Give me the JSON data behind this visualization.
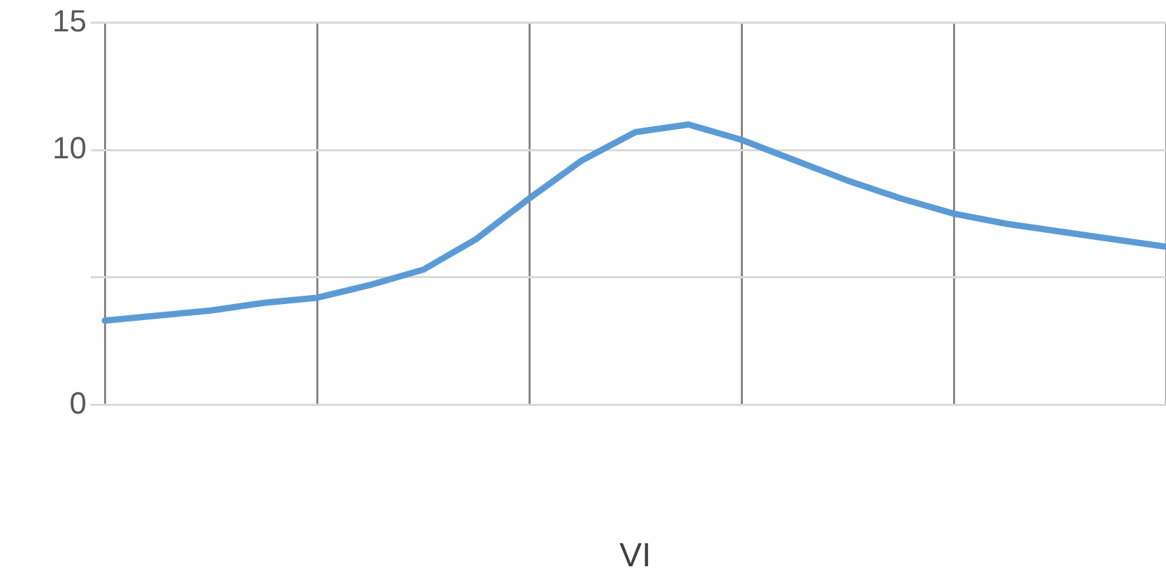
{
  "chart_data": {
    "type": "line",
    "xlabel": "VI",
    "categories": [
      null,
      null,
      null,
      null,
      null,
      null,
      null,
      null,
      null,
      null,
      null,
      null,
      null,
      null,
      null,
      null,
      null,
      null,
      null,
      null,
      null
    ],
    "series": [
      {
        "color": "#5b9bd5",
        "values": [
          3.3,
          3.5,
          3.7,
          4.0,
          4.2,
          4.7,
          5.3,
          6.5,
          8.1,
          9.6,
          10.7,
          11.0,
          10.4,
          9.6,
          8.8,
          8.1,
          7.5,
          7.1,
          6.8,
          6.5,
          6.2
        ]
      }
    ],
    "ylim": [
      0,
      15
    ],
    "yticks": [
      0,
      {
        "value": 5,
        "label": null
      },
      10,
      15
    ],
    "grid": true,
    "legend": false,
    "tick_labels": "y",
    "marker": "none",
    "line_style": "solid"
  }
}
